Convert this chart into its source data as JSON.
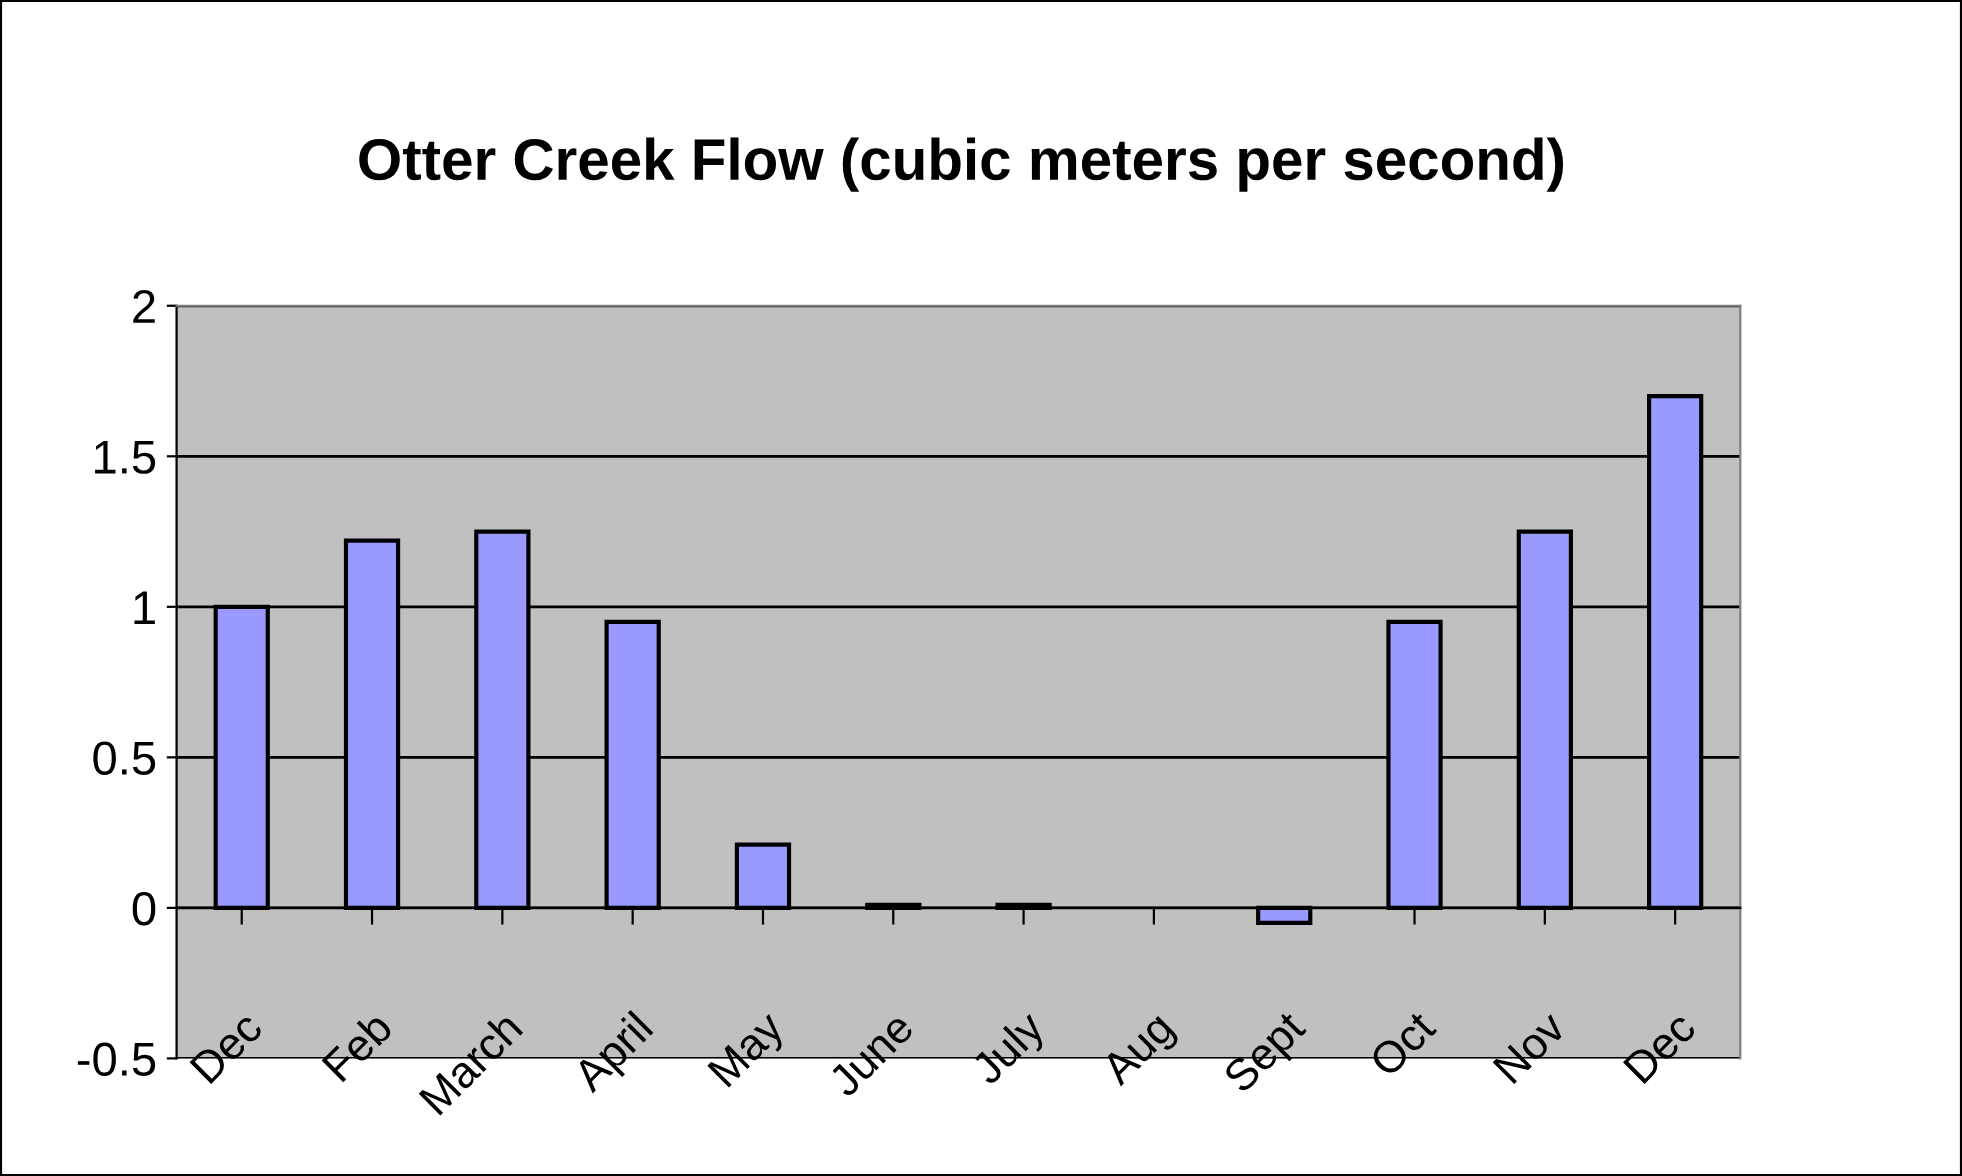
{
  "chart_data": {
    "type": "bar",
    "title": "Otter Creek Flow (cubic meters per second)",
    "categories": [
      "Dec",
      "Feb",
      "March",
      "April",
      "May",
      "June",
      "July",
      "Aug",
      "Sept",
      "Oct",
      "Nov",
      "Dec"
    ],
    "values": [
      1.0,
      1.22,
      1.25,
      0.95,
      0.21,
      0.01,
      0.01,
      null,
      -0.05,
      0.95,
      1.25,
      1.7
    ],
    "color": "#9999ff",
    "ylim": [
      -0.5,
      2
    ],
    "yticks": [
      -0.5,
      0,
      0.5,
      1,
      1.5,
      2
    ],
    "grid": "y"
  }
}
